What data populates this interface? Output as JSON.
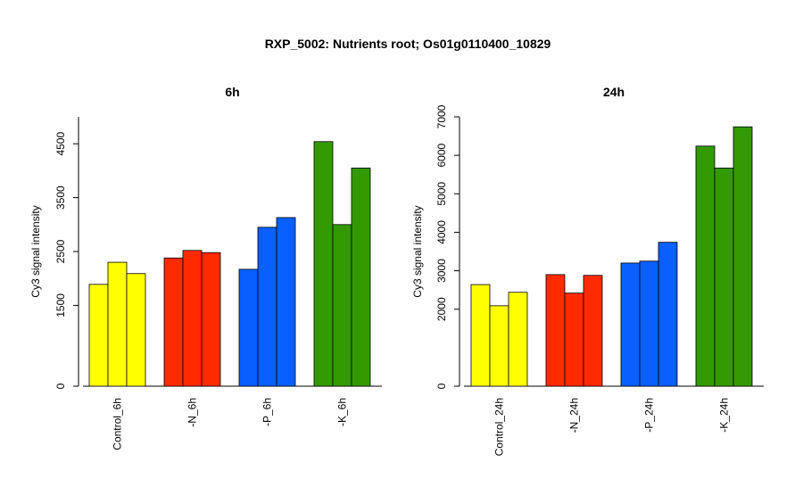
{
  "title": "RXP_5002: Nutrients root; Os01g0110400_10829",
  "chart_data": [
    {
      "type": "bar",
      "title": "6h",
      "ylabel": "Cy3 signal intensity",
      "ylim": [
        0,
        5000
      ],
      "yticks": [
        "0",
        "1500",
        "2500",
        "3500",
        "4500"
      ],
      "ytick_values": [
        0,
        1500,
        2500,
        3500,
        4500
      ],
      "grid": false,
      "groups": [
        {
          "label": "Control_6h",
          "color": "#ffff00",
          "values": [
            1890,
            2300,
            2090
          ]
        },
        {
          "label": "-N_6h",
          "color": "#ff2a00",
          "values": [
            2380,
            2520,
            2480
          ]
        },
        {
          "label": "-P_6h",
          "color": "#0a5fff",
          "values": [
            2170,
            2950,
            3130
          ]
        },
        {
          "label": "-K_6h",
          "color": "#339900",
          "values": [
            4540,
            3000,
            4050
          ]
        }
      ]
    },
    {
      "type": "bar",
      "title": "24h",
      "ylabel": "Cy3 signal intensity",
      "ylim": [
        0,
        7000
      ],
      "yticks": [
        "0",
        "2000",
        "3000",
        "4000",
        "5000",
        "6000",
        "7000"
      ],
      "ytick_values": [
        0,
        2000,
        3000,
        4000,
        5000,
        6000,
        7000
      ],
      "grid": false,
      "groups": [
        {
          "label": "Control_24h",
          "color": "#ffff00",
          "values": [
            2640,
            2090,
            2440
          ]
        },
        {
          "label": "-N_24h",
          "color": "#ff2a00",
          "values": [
            2900,
            2420,
            2880
          ]
        },
        {
          "label": "-P_24h",
          "color": "#0a5fff",
          "values": [
            3200,
            3250,
            3740
          ]
        },
        {
          "label": "-K_24h",
          "color": "#339900",
          "values": [
            6240,
            5670,
            6740
          ]
        }
      ]
    }
  ]
}
